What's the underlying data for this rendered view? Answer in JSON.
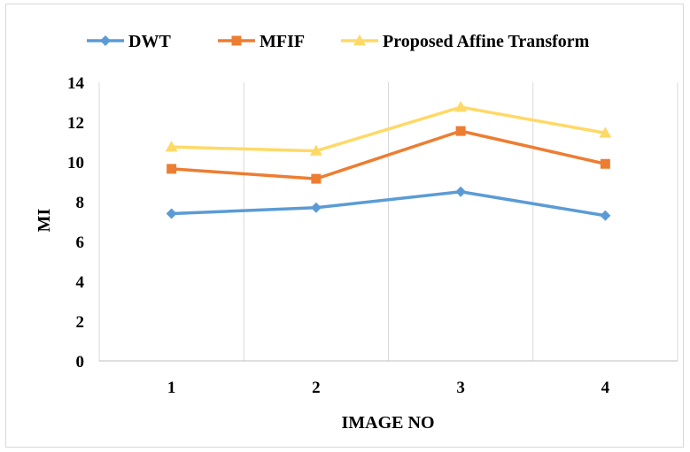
{
  "chart_data": {
    "type": "line",
    "title": "",
    "xlabel": "IMAGE NO",
    "ylabel": "MI",
    "categories": [
      "1",
      "2",
      "3",
      "4"
    ],
    "ylim": [
      0,
      14
    ],
    "yticks": [
      "0",
      "2",
      "4",
      "6",
      "8",
      "10",
      "12",
      "14"
    ],
    "grid": "vertical",
    "legend_position": "top",
    "series": [
      {
        "name": "DWT",
        "values": [
          7.4,
          7.7,
          8.5,
          7.3
        ],
        "color": "#5b9bd5",
        "marker": "diamond"
      },
      {
        "name": "MFIF",
        "values": [
          9.65,
          9.15,
          11.55,
          9.9
        ],
        "color": "#ed7d31",
        "marker": "square"
      },
      {
        "name": "Proposed Affine Transform",
        "values": [
          10.75,
          10.55,
          12.75,
          11.45
        ],
        "color": "#ffd966",
        "marker": "triangle"
      }
    ]
  }
}
